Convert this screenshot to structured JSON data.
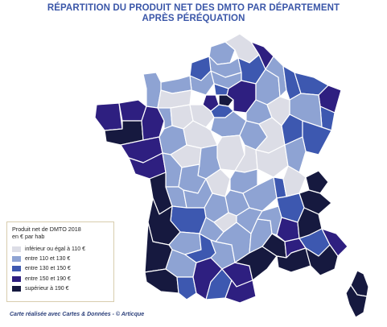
{
  "title": {
    "line1": "RÉPARTITION DU PRODUIT NET DES DMTO PAR DÉPARTEMENT",
    "line2": "APRÈS PÉRÉQUATION"
  },
  "legend": {
    "title_line1": "Produit net de DMTO 2018",
    "title_line2": "en € par hab",
    "classes": [
      {
        "label": "inférieur ou égal à 110 €",
        "color": "#dcdde6"
      },
      {
        "label": "entre 110 et 130 €",
        "color": "#8ea3d3"
      },
      {
        "label": "entre 130 et 150 €",
        "color": "#3d58b0"
      },
      {
        "label": "entre 150 et 190 €",
        "color": "#2e1f80"
      },
      {
        "label": "supérieur à 190 €",
        "color": "#16193f"
      }
    ]
  },
  "credit": "Carte réalisée avec Cartes & Données - © Articque",
  "colors": {
    "title": "#3a56a8",
    "border": "#ffffff"
  }
}
